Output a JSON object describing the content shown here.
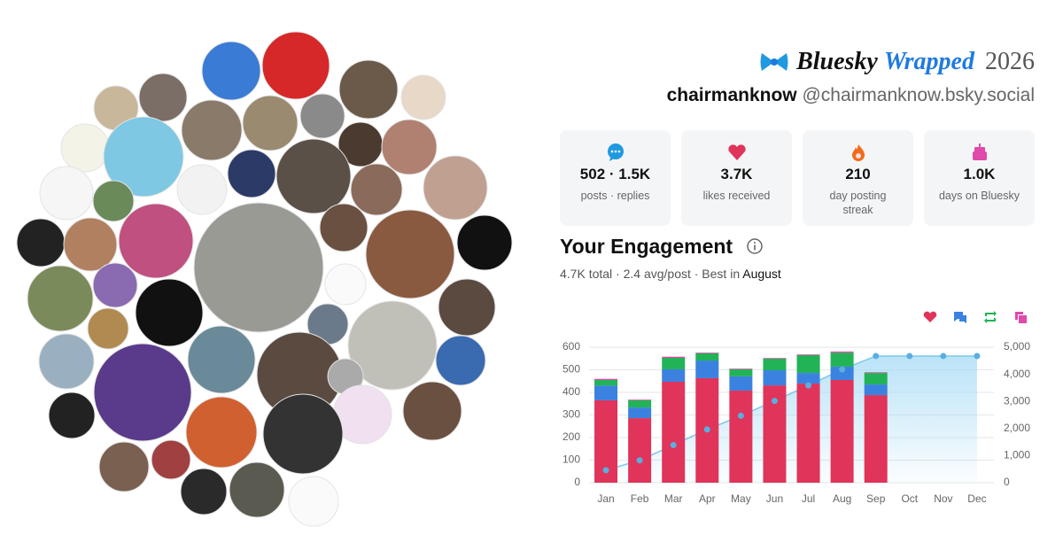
{
  "header": {
    "brand": "Bluesky",
    "product": "Wrapped",
    "year": "2026"
  },
  "user": {
    "name": "chairmanknow",
    "handle": "@chairmanknow.bsky.social"
  },
  "stats": [
    {
      "value": "502 · 1.5K",
      "label": "posts · replies"
    },
    {
      "value": "3.7K",
      "label": "likes received"
    },
    {
      "value": "210",
      "label": "day posting streak"
    },
    {
      "value": "1.0K",
      "label": "days on Bluesky"
    }
  ],
  "engagement": {
    "title": "Your Engagement",
    "summary": "4.7K total · 2.4 avg/post · Best in",
    "best": "August"
  },
  "chart_data": {
    "type": "bar",
    "stacked": true,
    "grid": true,
    "categories": [
      "Jan",
      "Feb",
      "Mar",
      "Apr",
      "May",
      "Jun",
      "Jul",
      "Aug",
      "Sep",
      "Oct",
      "Nov",
      "Dec"
    ],
    "series": [
      {
        "color": "#e0345a",
        "values": [
          365,
          286,
          447,
          463,
          408,
          431,
          439,
          455,
          388,
          null,
          null,
          null
        ]
      },
      {
        "color": "#3b82e0",
        "values": [
          65,
          47,
          55,
          78,
          63,
          67,
          47,
          59,
          47,
          null,
          null,
          null
        ]
      },
      {
        "color": "#22b357",
        "values": [
          25,
          32,
          51,
          32,
          31,
          51,
          79,
          62,
          51,
          null,
          null,
          null
        ]
      },
      {
        "color": "#e04aa8",
        "values": [
          5,
          3,
          5,
          3,
          3,
          3,
          3,
          5,
          3,
          null,
          null,
          null
        ]
      },
      {
        "type": "line",
        "axis": "y2",
        "color": "#7cc7ec",
        "values": [
          460,
          825,
          1390,
          1965,
          2470,
          3020,
          3590,
          4180,
          4675,
          4675,
          4675,
          4675
        ]
      }
    ],
    "ylim": [
      0,
      600
    ],
    "yticks": [
      0,
      100,
      200,
      300,
      400,
      500,
      600
    ],
    "y2lim": [
      0,
      5000
    ],
    "y2ticks": [
      0,
      {
        "value": 1000,
        "label": "1,000"
      },
      {
        "value": 2000,
        "label": "2,000"
      },
      {
        "value": 3000,
        "label": "3,000"
      },
      {
        "value": 4000,
        "label": "4,000"
      },
      {
        "value": 5000,
        "label": "5,000"
      }
    ]
  }
}
